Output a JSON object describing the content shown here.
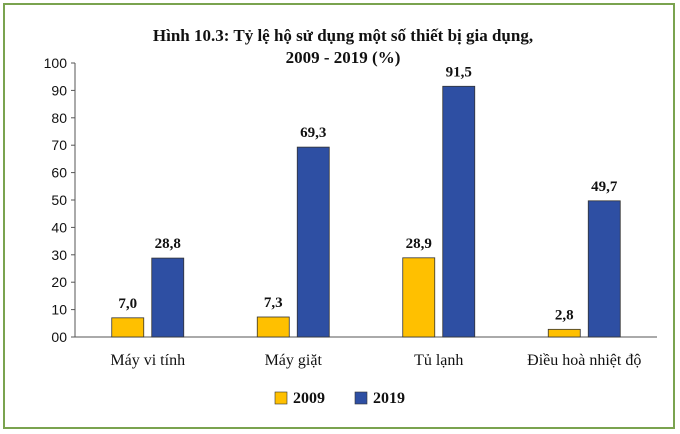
{
  "chart_data": {
    "type": "bar",
    "title_line1": "Hình 10.3: Tỷ lệ hộ sử dụng một số thiết bị gia dụng,",
    "title_line2": "2009 - 2019 (%)",
    "categories": [
      "Máy vi tính",
      "Máy giặt",
      "Tủ lạnh",
      "Điều hoà nhiệt độ"
    ],
    "series": [
      {
        "name": "2009",
        "values": [
          7.0,
          7.3,
          28.9,
          2.8
        ],
        "labels": [
          "7,0",
          "7,3",
          "28,9",
          "2,8"
        ],
        "color": "#FFC000"
      },
      {
        "name": "2019",
        "values": [
          28.8,
          69.3,
          91.5,
          49.7
        ],
        "labels": [
          "28,8",
          "69,3",
          "91,5",
          "49,7"
        ],
        "color": "#2E4FA3"
      }
    ],
    "yticks": [
      "00",
      "10",
      "20",
      "30",
      "40",
      "50",
      "60",
      "70",
      "80",
      "90",
      "100"
    ],
    "ylim": [
      0,
      100
    ],
    "grid": false,
    "legend_position": "bottom"
  }
}
